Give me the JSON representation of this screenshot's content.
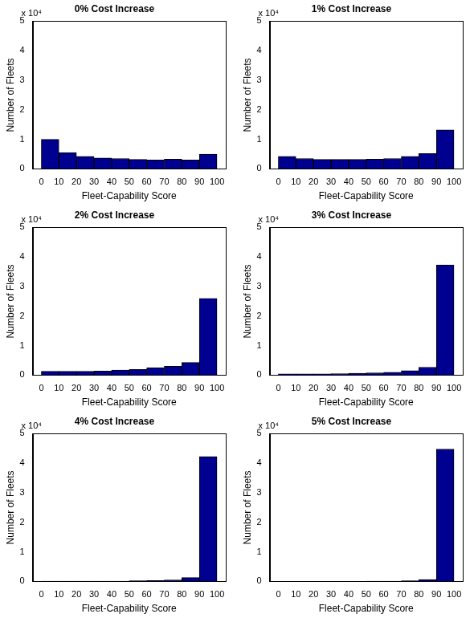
{
  "chart_data": [
    {
      "type": "histogram",
      "title": "0% Cost Increase",
      "annotation": "x 10⁴",
      "x_label": "Fleet-Capability Score",
      "y_label": "Number of Fleets",
      "bins": [
        0,
        10,
        20,
        30,
        40,
        50,
        60,
        70,
        80,
        90,
        100
      ],
      "values": [
        1.0,
        0.55,
        0.42,
        0.37,
        0.35,
        0.32,
        0.3,
        0.33,
        0.3,
        0.5
      ],
      "color": "#000090",
      "xlim": [
        0,
        100
      ],
      "xticks": [
        0,
        10,
        20,
        30,
        40,
        50,
        60,
        70,
        80,
        90,
        100
      ],
      "ylim": [
        0,
        5
      ],
      "yticks": [
        0,
        1,
        2,
        3,
        4,
        5
      ],
      "grid": false
    },
    {
      "type": "histogram",
      "title": "1% Cost Increase",
      "annotation": "x 10⁴",
      "x_label": "Fleet-Capability Score",
      "y_label": "Number of Fleets",
      "bins": [
        0,
        10,
        20,
        30,
        40,
        50,
        60,
        70,
        80,
        90,
        100
      ],
      "values": [
        0.42,
        0.35,
        0.32,
        0.32,
        0.32,
        0.33,
        0.35,
        0.42,
        0.52,
        1.32
      ],
      "color": "#000090",
      "xlim": [
        0,
        100
      ],
      "xticks": [
        0,
        10,
        20,
        30,
        40,
        50,
        60,
        70,
        80,
        90,
        100
      ],
      "ylim": [
        0,
        5
      ],
      "yticks": [
        0,
        1,
        2,
        3,
        4,
        5
      ],
      "grid": false
    },
    {
      "type": "histogram",
      "title": "2% Cost Increase",
      "annotation": "x 10⁴",
      "x_label": "Fleet-Capability Score",
      "y_label": "Number of Fleets",
      "bins": [
        0,
        10,
        20,
        30,
        40,
        50,
        60,
        70,
        80,
        90,
        100
      ],
      "values": [
        0.13,
        0.13,
        0.13,
        0.14,
        0.17,
        0.19,
        0.25,
        0.3,
        0.43,
        2.6
      ],
      "color": "#000090",
      "xlim": [
        0,
        100
      ],
      "xticks": [
        0,
        10,
        20,
        30,
        40,
        50,
        60,
        70,
        80,
        90,
        100
      ],
      "ylim": [
        0,
        5
      ],
      "yticks": [
        0,
        1,
        2,
        3,
        4,
        5
      ],
      "grid": false
    },
    {
      "type": "histogram",
      "title": "3% Cost Increase",
      "annotation": "x 10⁴",
      "x_label": "Fleet-Capability Score",
      "y_label": "Number of Fleets",
      "bins": [
        0,
        10,
        20,
        30,
        40,
        50,
        60,
        70,
        80,
        90,
        100
      ],
      "values": [
        0.04,
        0.04,
        0.04,
        0.05,
        0.06,
        0.08,
        0.1,
        0.15,
        0.27,
        3.73
      ],
      "color": "#000090",
      "xlim": [
        0,
        100
      ],
      "xticks": [
        0,
        10,
        20,
        30,
        40,
        50,
        60,
        70,
        80,
        90,
        100
      ],
      "ylim": [
        0,
        5
      ],
      "yticks": [
        0,
        1,
        2,
        3,
        4,
        5
      ],
      "grid": false
    },
    {
      "type": "histogram",
      "title": "4% Cost Increase",
      "annotation": "x 10⁴",
      "x_label": "Fleet-Capability Score",
      "y_label": "Number of Fleets",
      "bins": [
        0,
        10,
        20,
        30,
        40,
        50,
        60,
        70,
        80,
        90,
        100
      ],
      "values": [
        0.01,
        0.01,
        0.01,
        0.01,
        0.01,
        0.02,
        0.03,
        0.05,
        0.13,
        4.23
      ],
      "color": "#000090",
      "xlim": [
        0,
        100
      ],
      "xticks": [
        0,
        10,
        20,
        30,
        40,
        50,
        60,
        70,
        80,
        90,
        100
      ],
      "ylim": [
        0,
        5
      ],
      "yticks": [
        0,
        1,
        2,
        3,
        4,
        5
      ],
      "grid": false
    },
    {
      "type": "histogram",
      "title": "5% Cost Increase",
      "annotation": "x 10⁴",
      "x_label": "Fleet-Capability Score",
      "y_label": "Number of Fleets",
      "bins": [
        0,
        10,
        20,
        30,
        40,
        50,
        60,
        70,
        80,
        90,
        100
      ],
      "values": [
        0.0,
        0.0,
        0.0,
        0.0,
        0.0,
        0.01,
        0.01,
        0.02,
        0.06,
        4.48
      ],
      "color": "#000090",
      "xlim": [
        0,
        100
      ],
      "xticks": [
        0,
        10,
        20,
        30,
        40,
        50,
        60,
        70,
        80,
        90,
        100
      ],
      "ylim": [
        0,
        5
      ],
      "yticks": [
        0,
        1,
        2,
        3,
        4,
        5
      ],
      "grid": false
    }
  ]
}
